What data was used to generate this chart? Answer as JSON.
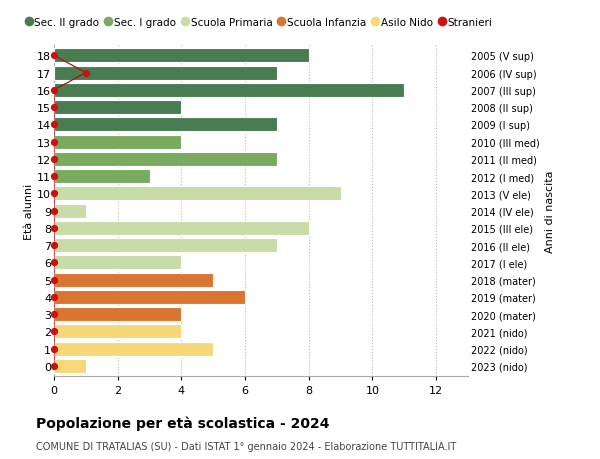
{
  "ages": [
    18,
    17,
    16,
    15,
    14,
    13,
    12,
    11,
    10,
    9,
    8,
    7,
    6,
    5,
    4,
    3,
    2,
    1,
    0
  ],
  "right_labels": [
    "2005 (V sup)",
    "2006 (IV sup)",
    "2007 (III sup)",
    "2008 (II sup)",
    "2009 (I sup)",
    "2010 (III med)",
    "2011 (II med)",
    "2012 (I med)",
    "2013 (V ele)",
    "2014 (IV ele)",
    "2015 (III ele)",
    "2016 (II ele)",
    "2017 (I ele)",
    "2018 (mater)",
    "2019 (mater)",
    "2020 (mater)",
    "2021 (nido)",
    "2022 (nido)",
    "2023 (nido)"
  ],
  "values": [
    8,
    7,
    11,
    4,
    7,
    4,
    7,
    3,
    9,
    1,
    8,
    7,
    4,
    5,
    6,
    4,
    4,
    5,
    1
  ],
  "stranieri_x": [
    0,
    1,
    0,
    0,
    0,
    0,
    0,
    0,
    0,
    0,
    0,
    0,
    0,
    0,
    0,
    0,
    0,
    0,
    0
  ],
  "bar_colors": [
    "#4a7c52",
    "#4a7c52",
    "#4a7c52",
    "#4a7c52",
    "#4a7c52",
    "#7aaa60",
    "#7aaa60",
    "#7aaa60",
    "#c8dca8",
    "#c8dca8",
    "#c8dca8",
    "#c8dca8",
    "#c8dca8",
    "#d97530",
    "#d97530",
    "#d97530",
    "#f5d978",
    "#f5d978",
    "#f5d978"
  ],
  "legend_labels": [
    "Sec. II grado",
    "Sec. I grado",
    "Scuola Primaria",
    "Scuola Infanzia",
    "Asilo Nido",
    "Stranieri"
  ],
  "legend_colors": [
    "#4a7c52",
    "#7aaa60",
    "#c8dca8",
    "#d97530",
    "#f5d978",
    "#cc1111"
  ],
  "ylabel": "Età alunni",
  "right_ylabel": "Anni di nascita",
  "title": "Popolazione per età scolastica - 2024",
  "subtitle": "COMUNE DI TRATALIAS (SU) - Dati ISTAT 1° gennaio 2024 - Elaborazione TUTTITALIA.IT",
  "xlim": [
    0,
    13
  ],
  "xticks": [
    0,
    2,
    4,
    6,
    8,
    10,
    12
  ],
  "background_color": "#ffffff",
  "grid_color": "#bbbbbb",
  "stranieri_line_color": "#aa1111",
  "stranieri_dot_color": "#cc1111",
  "bar_height": 0.82
}
